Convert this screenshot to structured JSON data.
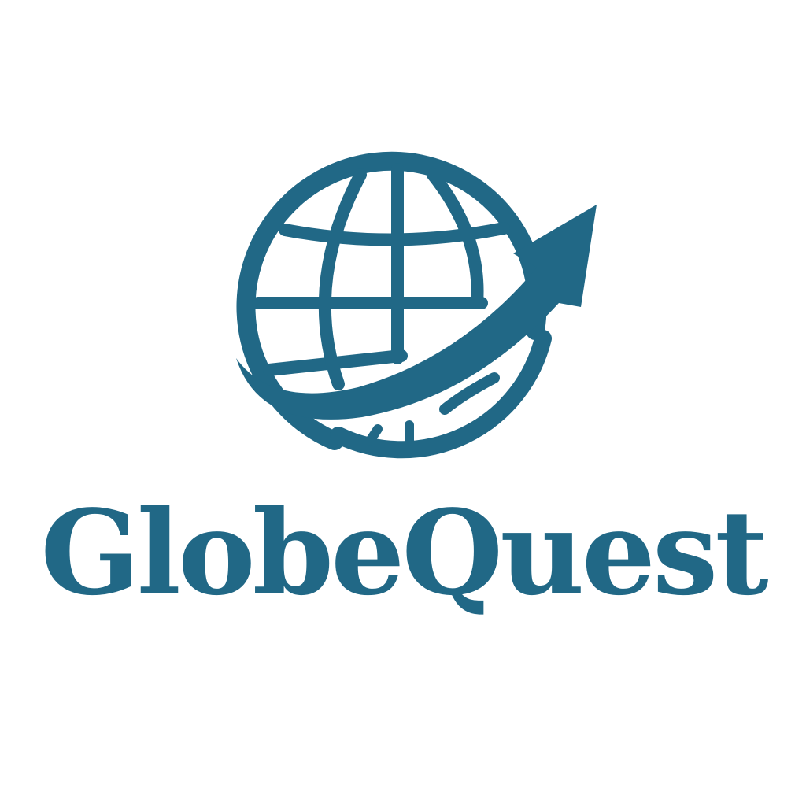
{
  "brand": {
    "name": "GlobeQuest",
    "color": "#216886",
    "background": "#ffffff"
  },
  "emblem": {
    "icon": "globe-with-upward-arrow-icon"
  }
}
